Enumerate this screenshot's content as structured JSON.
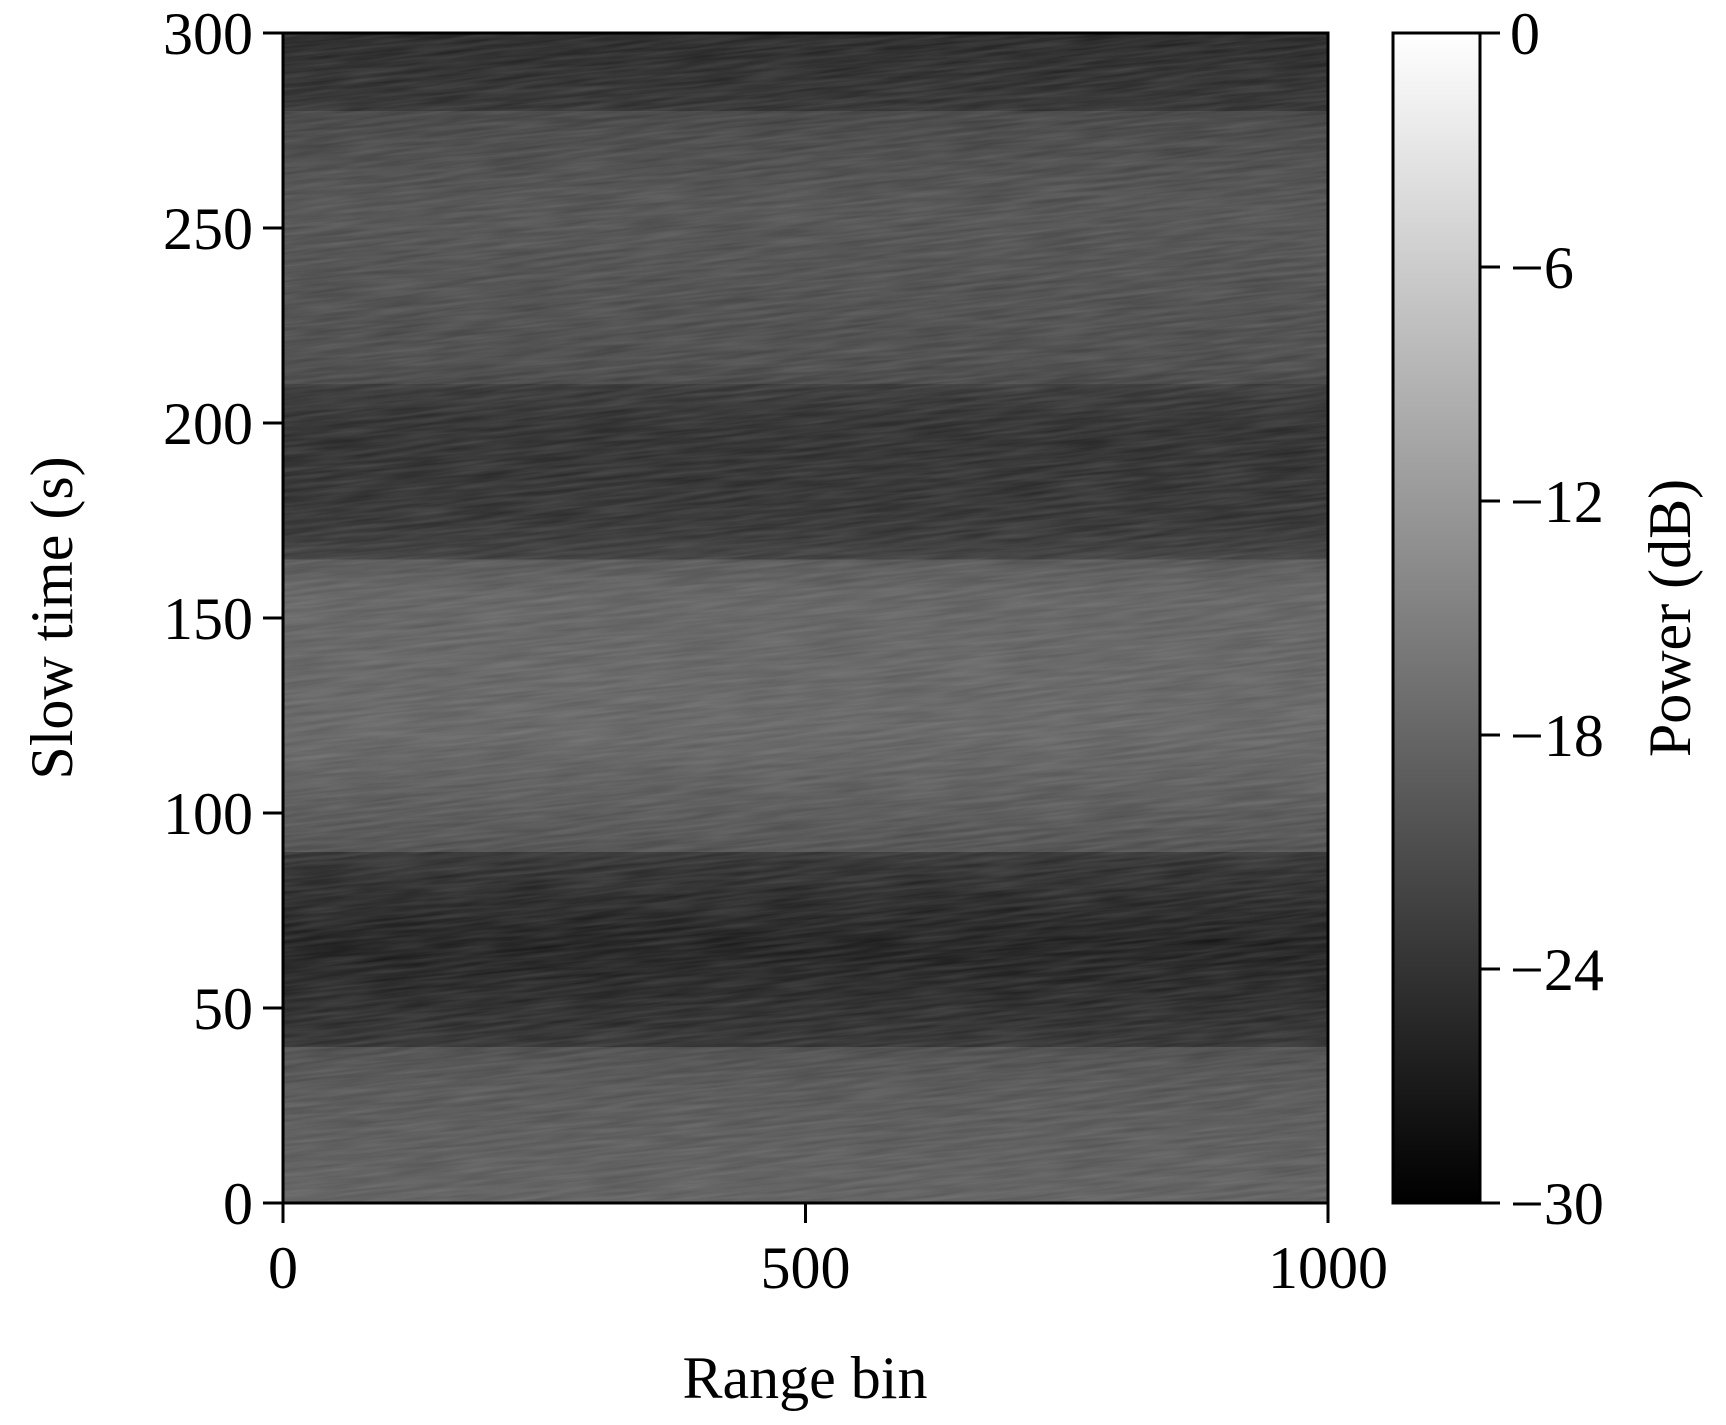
{
  "chart_data": {
    "type": "heatmap",
    "title": "",
    "xlabel": "Range bin",
    "ylabel": "Slow time (s)",
    "xlim": [
      0,
      1000
    ],
    "ylim": [
      0,
      300
    ],
    "x_ticks": [
      0,
      500,
      1000
    ],
    "x_tick_labels": [
      "0",
      "500",
      "1000"
    ],
    "y_ticks": [
      0,
      50,
      100,
      150,
      200,
      250,
      300
    ],
    "y_tick_labels": [
      "0",
      "50",
      "100",
      "150",
      "200",
      "250",
      "300"
    ],
    "grid": false,
    "colormap": "gray",
    "colorbar": {
      "label": "Power (dB)",
      "range": [
        -30,
        0
      ],
      "ticks": [
        0,
        -6,
        -12,
        -18,
        -24,
        -30
      ],
      "tick_labels": [
        "0",
        "−6",
        "−12",
        "−18",
        "−24",
        "−30"
      ],
      "low_color": "#000000",
      "high_color": "#ffffff"
    },
    "bands": [
      {
        "time_range": [
          0,
          40
        ],
        "power_db": -17
      },
      {
        "time_range": [
          40,
          90
        ],
        "power_db": -26
      },
      {
        "time_range": [
          90,
          165
        ],
        "power_db": -16
      },
      {
        "time_range": [
          165,
          210
        ],
        "power_db": -24
      },
      {
        "time_range": [
          210,
          280
        ],
        "power_db": -19
      },
      {
        "time_range": [
          280,
          300
        ],
        "power_db": -25
      }
    ]
  }
}
